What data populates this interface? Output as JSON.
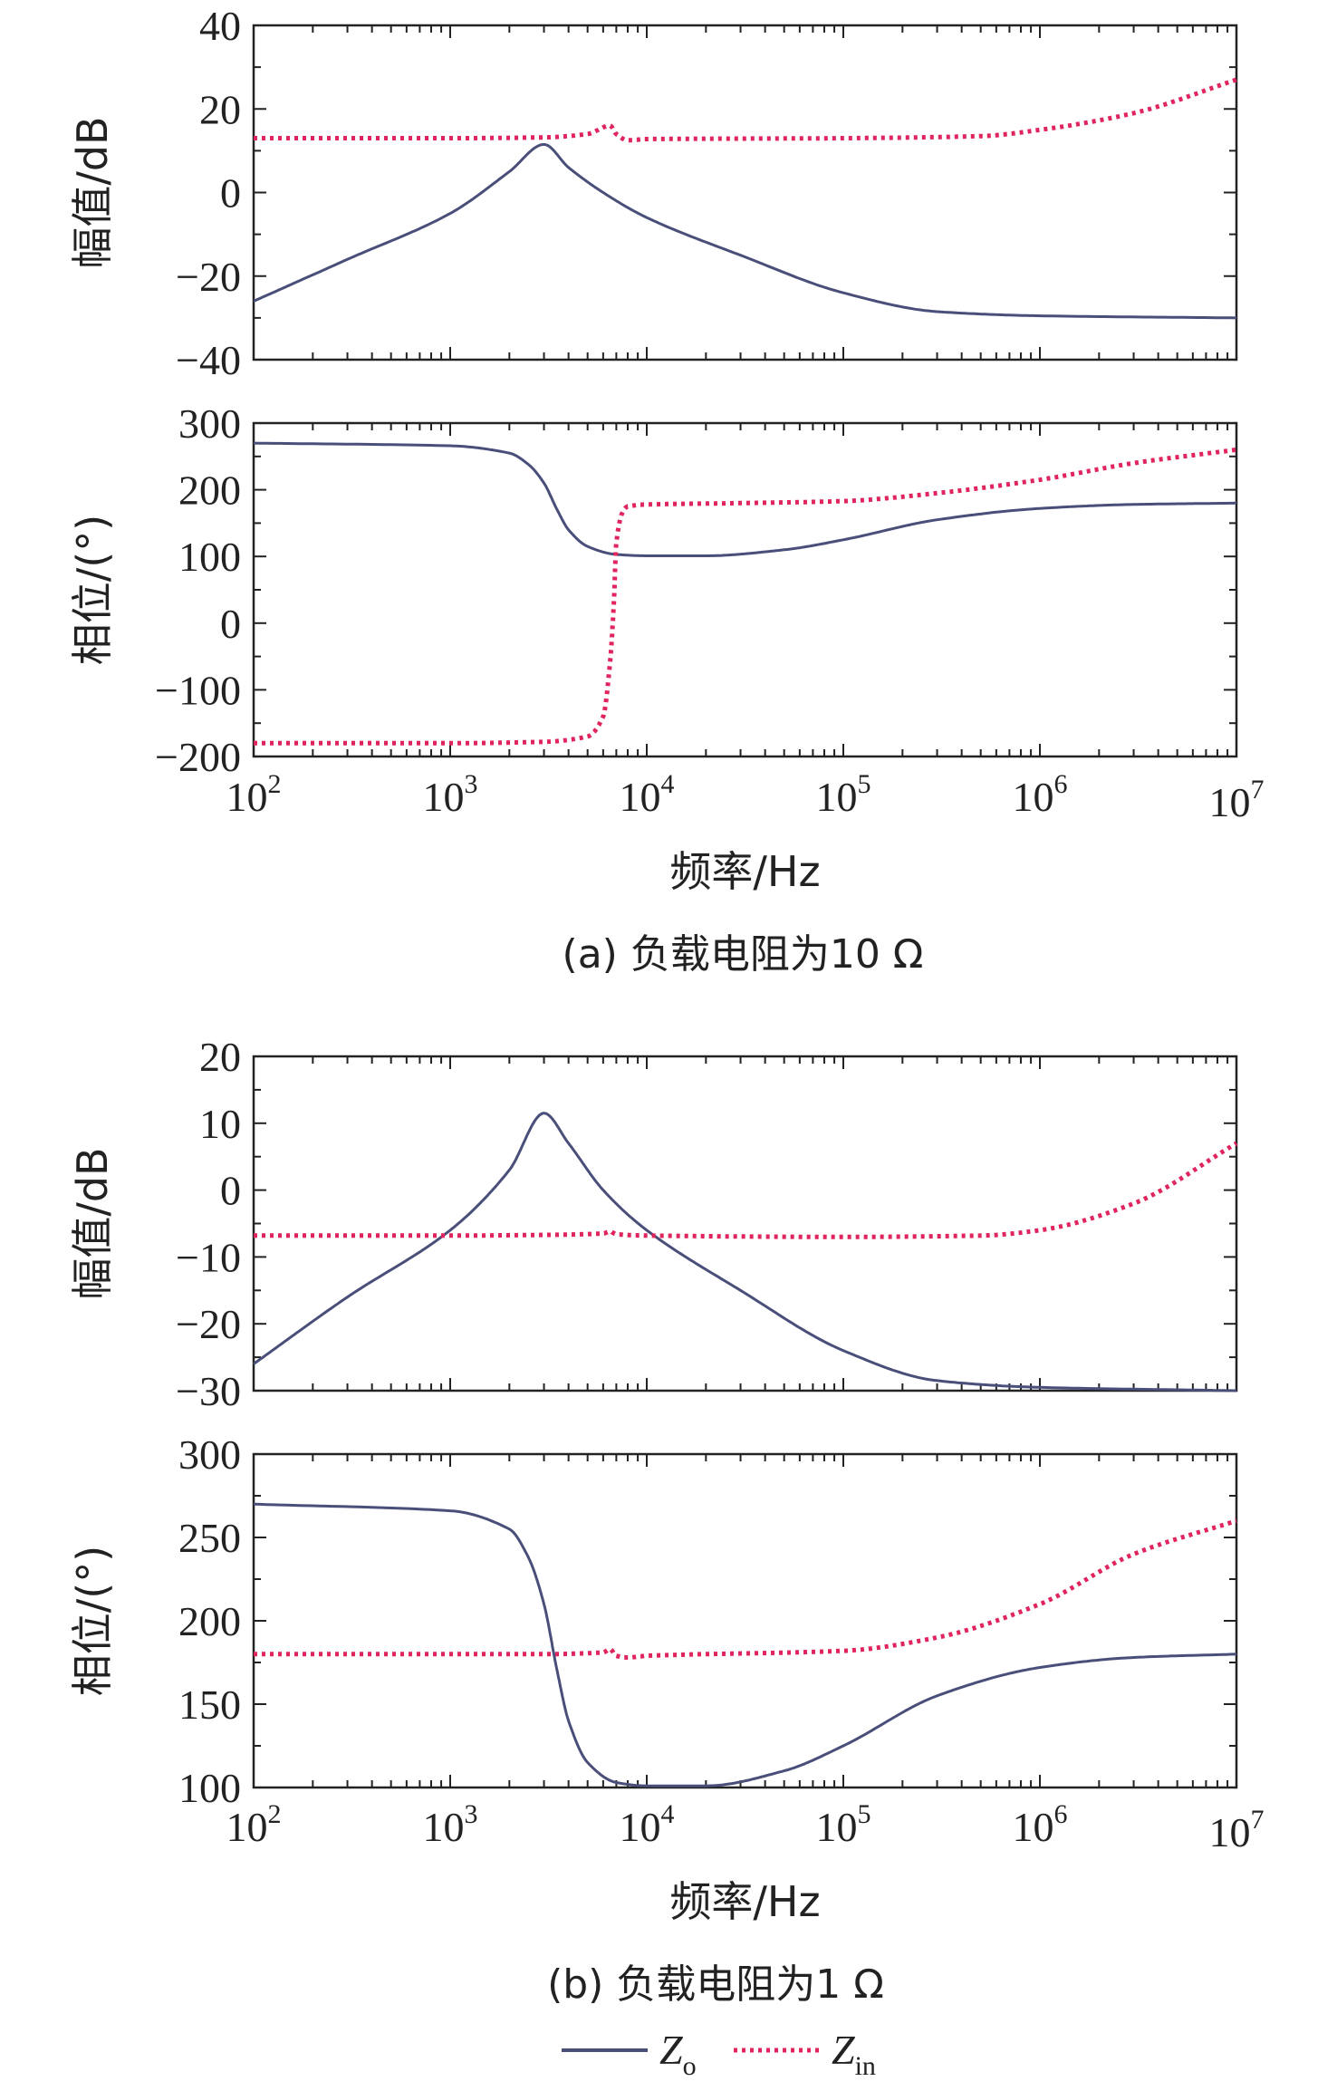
{
  "colors": {
    "Zo": "#4a4f7a",
    "Zin": "#e0245e"
  },
  "legend": {
    "items": [
      {
        "main": "Z",
        "sub": "o",
        "series": "Zo"
      },
      {
        "main": "Z",
        "sub": "in",
        "series": "Zin"
      }
    ]
  },
  "captions": [
    "(a) 负载电阻为10 Ω",
    "(b) 负载电阻为1 Ω"
  ],
  "chart_data": [
    {
      "type": "line",
      "panel": "a-magnitude",
      "xscale": "log",
      "xlim": [
        100,
        10000000
      ],
      "ylim": [
        -40,
        40
      ],
      "yticks": [
        -40,
        -20,
        0,
        20,
        40
      ],
      "ylabel": "幅值/dB",
      "xlabel": "",
      "series": [
        {
          "name": "Zo",
          "x": [
            100,
            300,
            1000,
            2000,
            3000,
            4000,
            6000,
            10000,
            30000,
            100000,
            300000,
            1000000,
            10000000
          ],
          "y": [
            -26,
            -16,
            -5,
            5,
            11.5,
            6,
            0,
            -6,
            -15,
            -24,
            -28.5,
            -29.5,
            -30
          ]
        },
        {
          "name": "Zin",
          "x": [
            100,
            1000,
            3000,
            5000,
            6500,
            7000,
            8000,
            10000,
            100000,
            500000,
            1000000,
            3000000,
            10000000
          ],
          "y": [
            13,
            13,
            13.2,
            14,
            16,
            14,
            12.5,
            12.8,
            13,
            13.5,
            15,
            19,
            27
          ]
        }
      ]
    },
    {
      "type": "line",
      "panel": "a-phase",
      "xscale": "log",
      "xlim": [
        100,
        10000000
      ],
      "ylim": [
        -200,
        300
      ],
      "yticks": [
        -200,
        -100,
        0,
        100,
        200,
        300
      ],
      "ylabel": "相位/(°)",
      "xlabel": "频率/Hz",
      "xticks": [
        {
          "value": 100,
          "base": "10",
          "exp": "2"
        },
        {
          "value": 1000,
          "base": "10",
          "exp": "3"
        },
        {
          "value": 10000,
          "base": "10",
          "exp": "4"
        },
        {
          "value": 100000,
          "base": "10",
          "exp": "5"
        },
        {
          "value": 1000000,
          "base": "10",
          "exp": "6"
        },
        {
          "value": 10000000,
          "base": "10",
          "exp": "7"
        }
      ],
      "series": [
        {
          "name": "Zo",
          "x": [
            100,
            1000,
            2000,
            2500,
            3000,
            3500,
            4000,
            5000,
            7000,
            10000,
            20000,
            50000,
            100000,
            300000,
            1000000,
            3000000,
            10000000
          ],
          "y": [
            270,
            266,
            255,
            238,
            210,
            170,
            140,
            115,
            103,
            101,
            101,
            110,
            125,
            155,
            172,
            178,
            180
          ]
        },
        {
          "name": "Zin",
          "x": [
            100,
            1000,
            3000,
            5000,
            6000,
            6500,
            6800,
            7000,
            7500,
            8000,
            10000,
            30000,
            100000,
            300000,
            1000000,
            3000000,
            10000000
          ],
          "y": [
            -180,
            -180,
            -178,
            -170,
            -140,
            -60,
            30,
            120,
            165,
            175,
            178,
            180,
            183,
            195,
            215,
            240,
            260
          ]
        }
      ]
    },
    {
      "type": "line",
      "panel": "b-magnitude",
      "xscale": "log",
      "xlim": [
        100,
        10000000
      ],
      "ylim": [
        -30,
        20
      ],
      "yticks": [
        -30,
        -20,
        -10,
        0,
        10,
        20
      ],
      "ylabel": "幅值/dB",
      "xlabel": "",
      "series": [
        {
          "name": "Zo",
          "x": [
            100,
            300,
            1000,
            2000,
            3000,
            4000,
            6000,
            10000,
            30000,
            100000,
            300000,
            1000000,
            10000000
          ],
          "y": [
            -26,
            -16,
            -6,
            3,
            11.5,
            7,
            0,
            -6,
            -15,
            -24,
            -28.5,
            -29.5,
            -30
          ]
        },
        {
          "name": "Zin",
          "x": [
            100,
            1000,
            3000,
            6000,
            6500,
            7000,
            10000,
            100000,
            500000,
            1000000,
            3000000,
            10000000
          ],
          "y": [
            -6.8,
            -6.8,
            -6.7,
            -6.5,
            -6.2,
            -6.6,
            -6.8,
            -7.0,
            -6.8,
            -6,
            -2,
            7
          ]
        }
      ]
    },
    {
      "type": "line",
      "panel": "b-phase",
      "xscale": "log",
      "xlim": [
        100,
        10000000
      ],
      "ylim": [
        100,
        300
      ],
      "yticks": [
        100,
        150,
        200,
        250,
        300
      ],
      "ylabel": "相位/(°)",
      "xlabel": "频率/Hz",
      "xticks": [
        {
          "value": 100,
          "base": "10",
          "exp": "2"
        },
        {
          "value": 1000,
          "base": "10",
          "exp": "3"
        },
        {
          "value": 10000,
          "base": "10",
          "exp": "4"
        },
        {
          "value": 100000,
          "base": "10",
          "exp": "5"
        },
        {
          "value": 1000000,
          "base": "10",
          "exp": "6"
        },
        {
          "value": 10000000,
          "base": "10",
          "exp": "7"
        }
      ],
      "series": [
        {
          "name": "Zo",
          "x": [
            100,
            1000,
            2000,
            2500,
            3000,
            3500,
            4000,
            5000,
            7000,
            10000,
            20000,
            50000,
            100000,
            300000,
            1000000,
            3000000,
            10000000
          ],
          "y": [
            270,
            266,
            255,
            238,
            210,
            170,
            140,
            115,
            103,
            101,
            101,
            110,
            125,
            155,
            172,
            178,
            180
          ]
        },
        {
          "name": "Zin",
          "x": [
            100,
            1000,
            3000,
            6000,
            6500,
            7000,
            8000,
            10000,
            100000,
            300000,
            1000000,
            3000000,
            10000000
          ],
          "y": [
            180,
            180,
            180,
            181,
            183,
            179,
            178,
            179,
            182,
            190,
            210,
            240,
            260
          ]
        }
      ]
    }
  ]
}
